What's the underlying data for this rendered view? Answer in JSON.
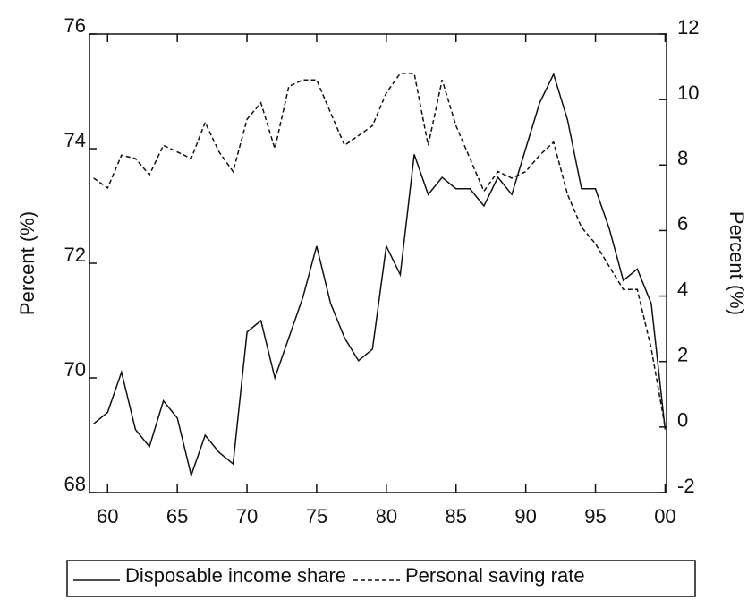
{
  "chart_data": {
    "type": "line",
    "x": [
      1959,
      1960,
      1961,
      1962,
      1963,
      1964,
      1965,
      1966,
      1967,
      1968,
      1969,
      1970,
      1971,
      1972,
      1973,
      1974,
      1975,
      1976,
      1977,
      1978,
      1979,
      1980,
      1981,
      1982,
      1983,
      1984,
      1985,
      1986,
      1987,
      1988,
      1989,
      1990,
      1991,
      1992,
      1993,
      1994,
      1995,
      1996,
      1997,
      1998,
      1999,
      2000
    ],
    "series": [
      {
        "name": "Disposable income share",
        "color": "#111111",
        "style": "solid",
        "axis": "y",
        "values": [
          69.2,
          69.4,
          70.1,
          69.1,
          68.8,
          69.6,
          69.3,
          68.3,
          69.0,
          68.7,
          68.5,
          70.8,
          71.0,
          70.0,
          70.7,
          71.4,
          72.3,
          71.3,
          70.7,
          70.3,
          70.5,
          72.3,
          71.8,
          73.9,
          73.2,
          73.5,
          73.3,
          73.3,
          73.0,
          73.5,
          73.2,
          74.0,
          74.8,
          75.3,
          74.5,
          73.3,
          73.3,
          72.6,
          71.7,
          71.9,
          71.3,
          69.1
        ]
      },
      {
        "name": "Personal saving rate",
        "color": "#111111",
        "style": "dashed",
        "axis": "y2",
        "values": [
          7.6,
          7.3,
          8.3,
          8.2,
          7.7,
          8.6,
          8.4,
          8.2,
          9.3,
          8.4,
          7.8,
          9.4,
          9.9,
          8.5,
          10.4,
          10.6,
          10.6,
          9.6,
          8.6,
          8.9,
          9.2,
          10.2,
          10.8,
          10.8,
          8.6,
          10.6,
          9.2,
          8.2,
          7.2,
          7.8,
          7.6,
          7.8,
          8.3,
          8.7,
          7.1,
          6.1,
          5.6,
          4.9,
          4.2,
          4.2,
          2.4,
          0.0
        ]
      }
    ],
    "y_label": "Percent (%)",
    "y2_label": "Percent (%)",
    "xlim": [
      1958.7,
      2000.1
    ],
    "xticks": [
      {
        "value": 1960,
        "label": "60"
      },
      {
        "value": 1965,
        "label": "65"
      },
      {
        "value": 1970,
        "label": "70"
      },
      {
        "value": 1975,
        "label": "75"
      },
      {
        "value": 1980,
        "label": "80"
      },
      {
        "value": 1985,
        "label": "85"
      },
      {
        "value": 1990,
        "label": "90"
      },
      {
        "value": 1995,
        "label": "95"
      },
      {
        "value": 2000,
        "label": "00"
      }
    ],
    "ylim": [
      68,
      76
    ],
    "yticks": [
      68,
      70,
      72,
      74,
      76
    ],
    "y2lim": [
      -2,
      12
    ],
    "y2ticks": [
      -2,
      0,
      2,
      4,
      6,
      8,
      10,
      12
    ],
    "grid": false
  }
}
